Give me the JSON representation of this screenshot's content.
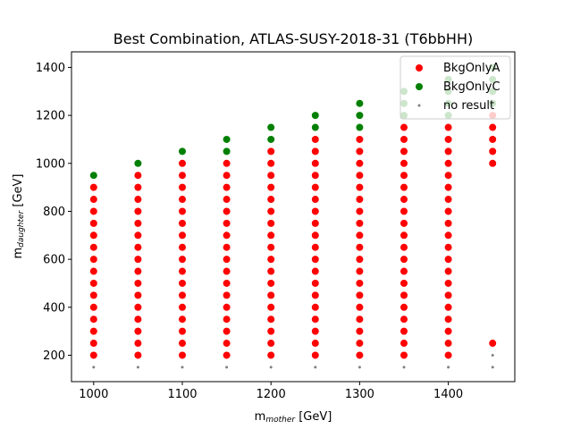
{
  "chart_data": {
    "type": "scatter",
    "title": "Best Combination, ATLAS-SUSY-2018-31 (T6bbHH)",
    "xlabel": {
      "main": "m",
      "sub": "mother",
      "unit": " [GeV]"
    },
    "ylabel": {
      "main": "m",
      "sub": "daughter",
      "unit": " [GeV]"
    },
    "xlim": [
      975,
      1475
    ],
    "ylim": [
      90,
      1465
    ],
    "xticks": [
      1000,
      1100,
      1200,
      1300,
      1400
    ],
    "yticks": [
      200,
      400,
      600,
      800,
      1000,
      1200,
      1400
    ],
    "grid": false,
    "legend_position": "top-right",
    "series": [
      {
        "name": "BkgOnlyA",
        "color": "#ff0000",
        "marker": "dot",
        "groups": [
          {
            "x": 1000,
            "y_from": 200,
            "y_to": 900,
            "step": 50
          },
          {
            "x": 1050,
            "y_from": 200,
            "y_to": 950,
            "step": 50
          },
          {
            "x": 1100,
            "y_from": 200,
            "y_to": 1000,
            "step": 50
          },
          {
            "x": 1150,
            "y_from": 200,
            "y_to": 1000,
            "step": 50
          },
          {
            "x": 1200,
            "y_from": 200,
            "y_to": 1050,
            "step": 50
          },
          {
            "x": 1250,
            "y_from": 200,
            "y_to": 1100,
            "step": 50
          },
          {
            "x": 1300,
            "y_from": 200,
            "y_to": 1100,
            "step": 50
          },
          {
            "x": 1350,
            "y_from": 200,
            "y_to": 1150,
            "step": 50
          },
          {
            "x": 1400,
            "y_from": 200,
            "y_to": 1150,
            "step": 50
          },
          {
            "x": 1450,
            "y_from": 1000,
            "y_to": 1200,
            "step": 50
          },
          {
            "x": 1450,
            "y_from": 250,
            "y_to": 250,
            "step": 50
          }
        ]
      },
      {
        "name": "BkgOnlyC",
        "color": "#008000",
        "marker": "dot",
        "groups": [
          {
            "x": 1000,
            "y_from": 950,
            "y_to": 950,
            "step": 50
          },
          {
            "x": 1050,
            "y_from": 1000,
            "y_to": 1000,
            "step": 50
          },
          {
            "x": 1100,
            "y_from": 1050,
            "y_to": 1050,
            "step": 50
          },
          {
            "x": 1150,
            "y_from": 1050,
            "y_to": 1100,
            "step": 50
          },
          {
            "x": 1200,
            "y_from": 1100,
            "y_to": 1150,
            "step": 50
          },
          {
            "x": 1250,
            "y_from": 1150,
            "y_to": 1200,
            "step": 50
          },
          {
            "x": 1300,
            "y_from": 1150,
            "y_to": 1250,
            "step": 50
          },
          {
            "x": 1350,
            "y_from": 1200,
            "y_to": 1300,
            "step": 50
          },
          {
            "x": 1400,
            "y_from": 1200,
            "y_to": 1350,
            "step": 50
          },
          {
            "x": 1450,
            "y_from": 1250,
            "y_to": 1400,
            "step": 50
          }
        ]
      },
      {
        "name": "no result",
        "color": "#808080",
        "marker": "small-dot",
        "groups": [
          {
            "x": 1000,
            "y_from": 150,
            "y_to": 150,
            "step": 50
          },
          {
            "x": 1050,
            "y_from": 150,
            "y_to": 150,
            "step": 50
          },
          {
            "x": 1100,
            "y_from": 150,
            "y_to": 150,
            "step": 50
          },
          {
            "x": 1150,
            "y_from": 150,
            "y_to": 150,
            "step": 50
          },
          {
            "x": 1200,
            "y_from": 150,
            "y_to": 150,
            "step": 50
          },
          {
            "x": 1250,
            "y_from": 150,
            "y_to": 150,
            "step": 50
          },
          {
            "x": 1300,
            "y_from": 150,
            "y_to": 150,
            "step": 50
          },
          {
            "x": 1350,
            "y_from": 150,
            "y_to": 150,
            "step": 50
          },
          {
            "x": 1400,
            "y_from": 150,
            "y_to": 150,
            "step": 50
          },
          {
            "x": 1450,
            "y_from": 150,
            "y_to": 200,
            "step": 50
          }
        ]
      }
    ]
  }
}
